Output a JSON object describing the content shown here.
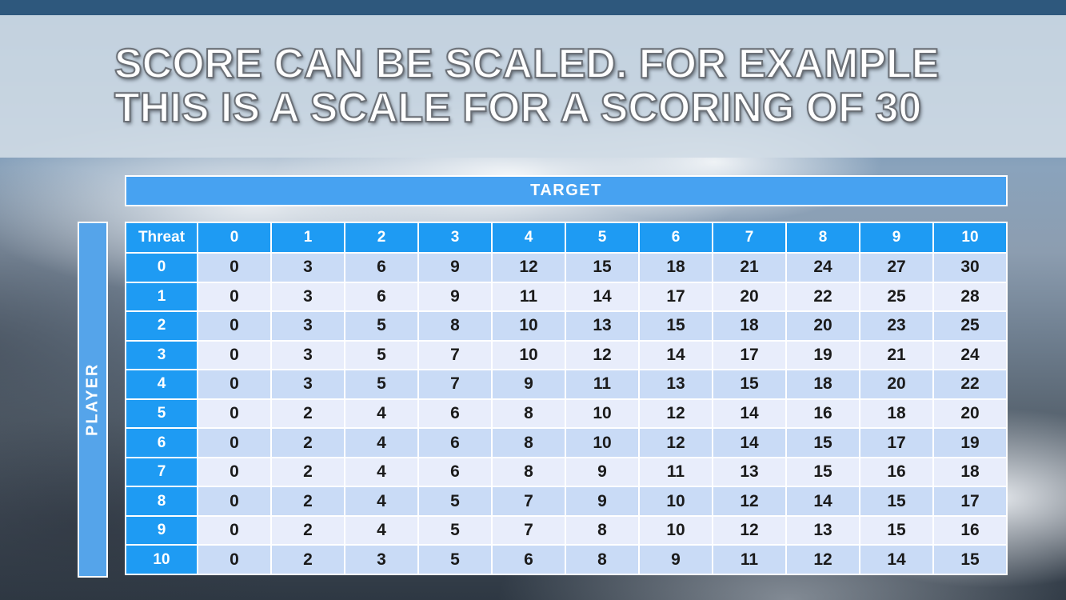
{
  "slide": {
    "title_lines": [
      "SCORE CAN BE SCALED. FOR EXAMPLE",
      "THIS IS A SCALE FOR A SCORING OF 30"
    ]
  },
  "table": {
    "target_label": "TARGET",
    "player_label": "PLAYER",
    "corner_label": "Threat",
    "column_headers": [
      "0",
      "1",
      "2",
      "3",
      "4",
      "5",
      "6",
      "7",
      "8",
      "9",
      "10"
    ],
    "row_headers": [
      "0",
      "1",
      "2",
      "3",
      "4",
      "5",
      "6",
      "7",
      "8",
      "9",
      "10"
    ],
    "rows": [
      [
        0,
        3,
        6,
        9,
        12,
        15,
        18,
        21,
        24,
        27,
        30
      ],
      [
        0,
        3,
        6,
        9,
        11,
        14,
        17,
        20,
        22,
        25,
        28
      ],
      [
        0,
        3,
        5,
        8,
        10,
        13,
        15,
        18,
        20,
        23,
        25
      ],
      [
        0,
        3,
        5,
        7,
        10,
        12,
        14,
        17,
        19,
        21,
        24
      ],
      [
        0,
        3,
        5,
        7,
        9,
        11,
        13,
        15,
        18,
        20,
        22
      ],
      [
        0,
        2,
        4,
        6,
        8,
        10,
        12,
        14,
        16,
        18,
        20
      ],
      [
        0,
        2,
        4,
        6,
        8,
        10,
        12,
        14,
        15,
        17,
        19
      ],
      [
        0,
        2,
        4,
        6,
        8,
        9,
        11,
        13,
        15,
        16,
        18
      ],
      [
        0,
        2,
        4,
        5,
        7,
        9,
        10,
        12,
        14,
        15,
        17
      ],
      [
        0,
        2,
        4,
        5,
        7,
        8,
        10,
        12,
        13,
        15,
        16
      ],
      [
        0,
        2,
        3,
        5,
        6,
        8,
        9,
        11,
        12,
        14,
        15
      ]
    ]
  },
  "colors": {
    "top_bar": "#2E587D",
    "title_band": "#D0DBE5",
    "header_cell_blue": "#1E9BF3",
    "target_bar_blue": "#47A2F1",
    "player_bar_blue": "#55A4EA",
    "row_even": "#C9DBF6",
    "row_odd": "#E8EDFB",
    "cell_text": "#1B1B1B",
    "grid_line": "#FFFFFF"
  }
}
